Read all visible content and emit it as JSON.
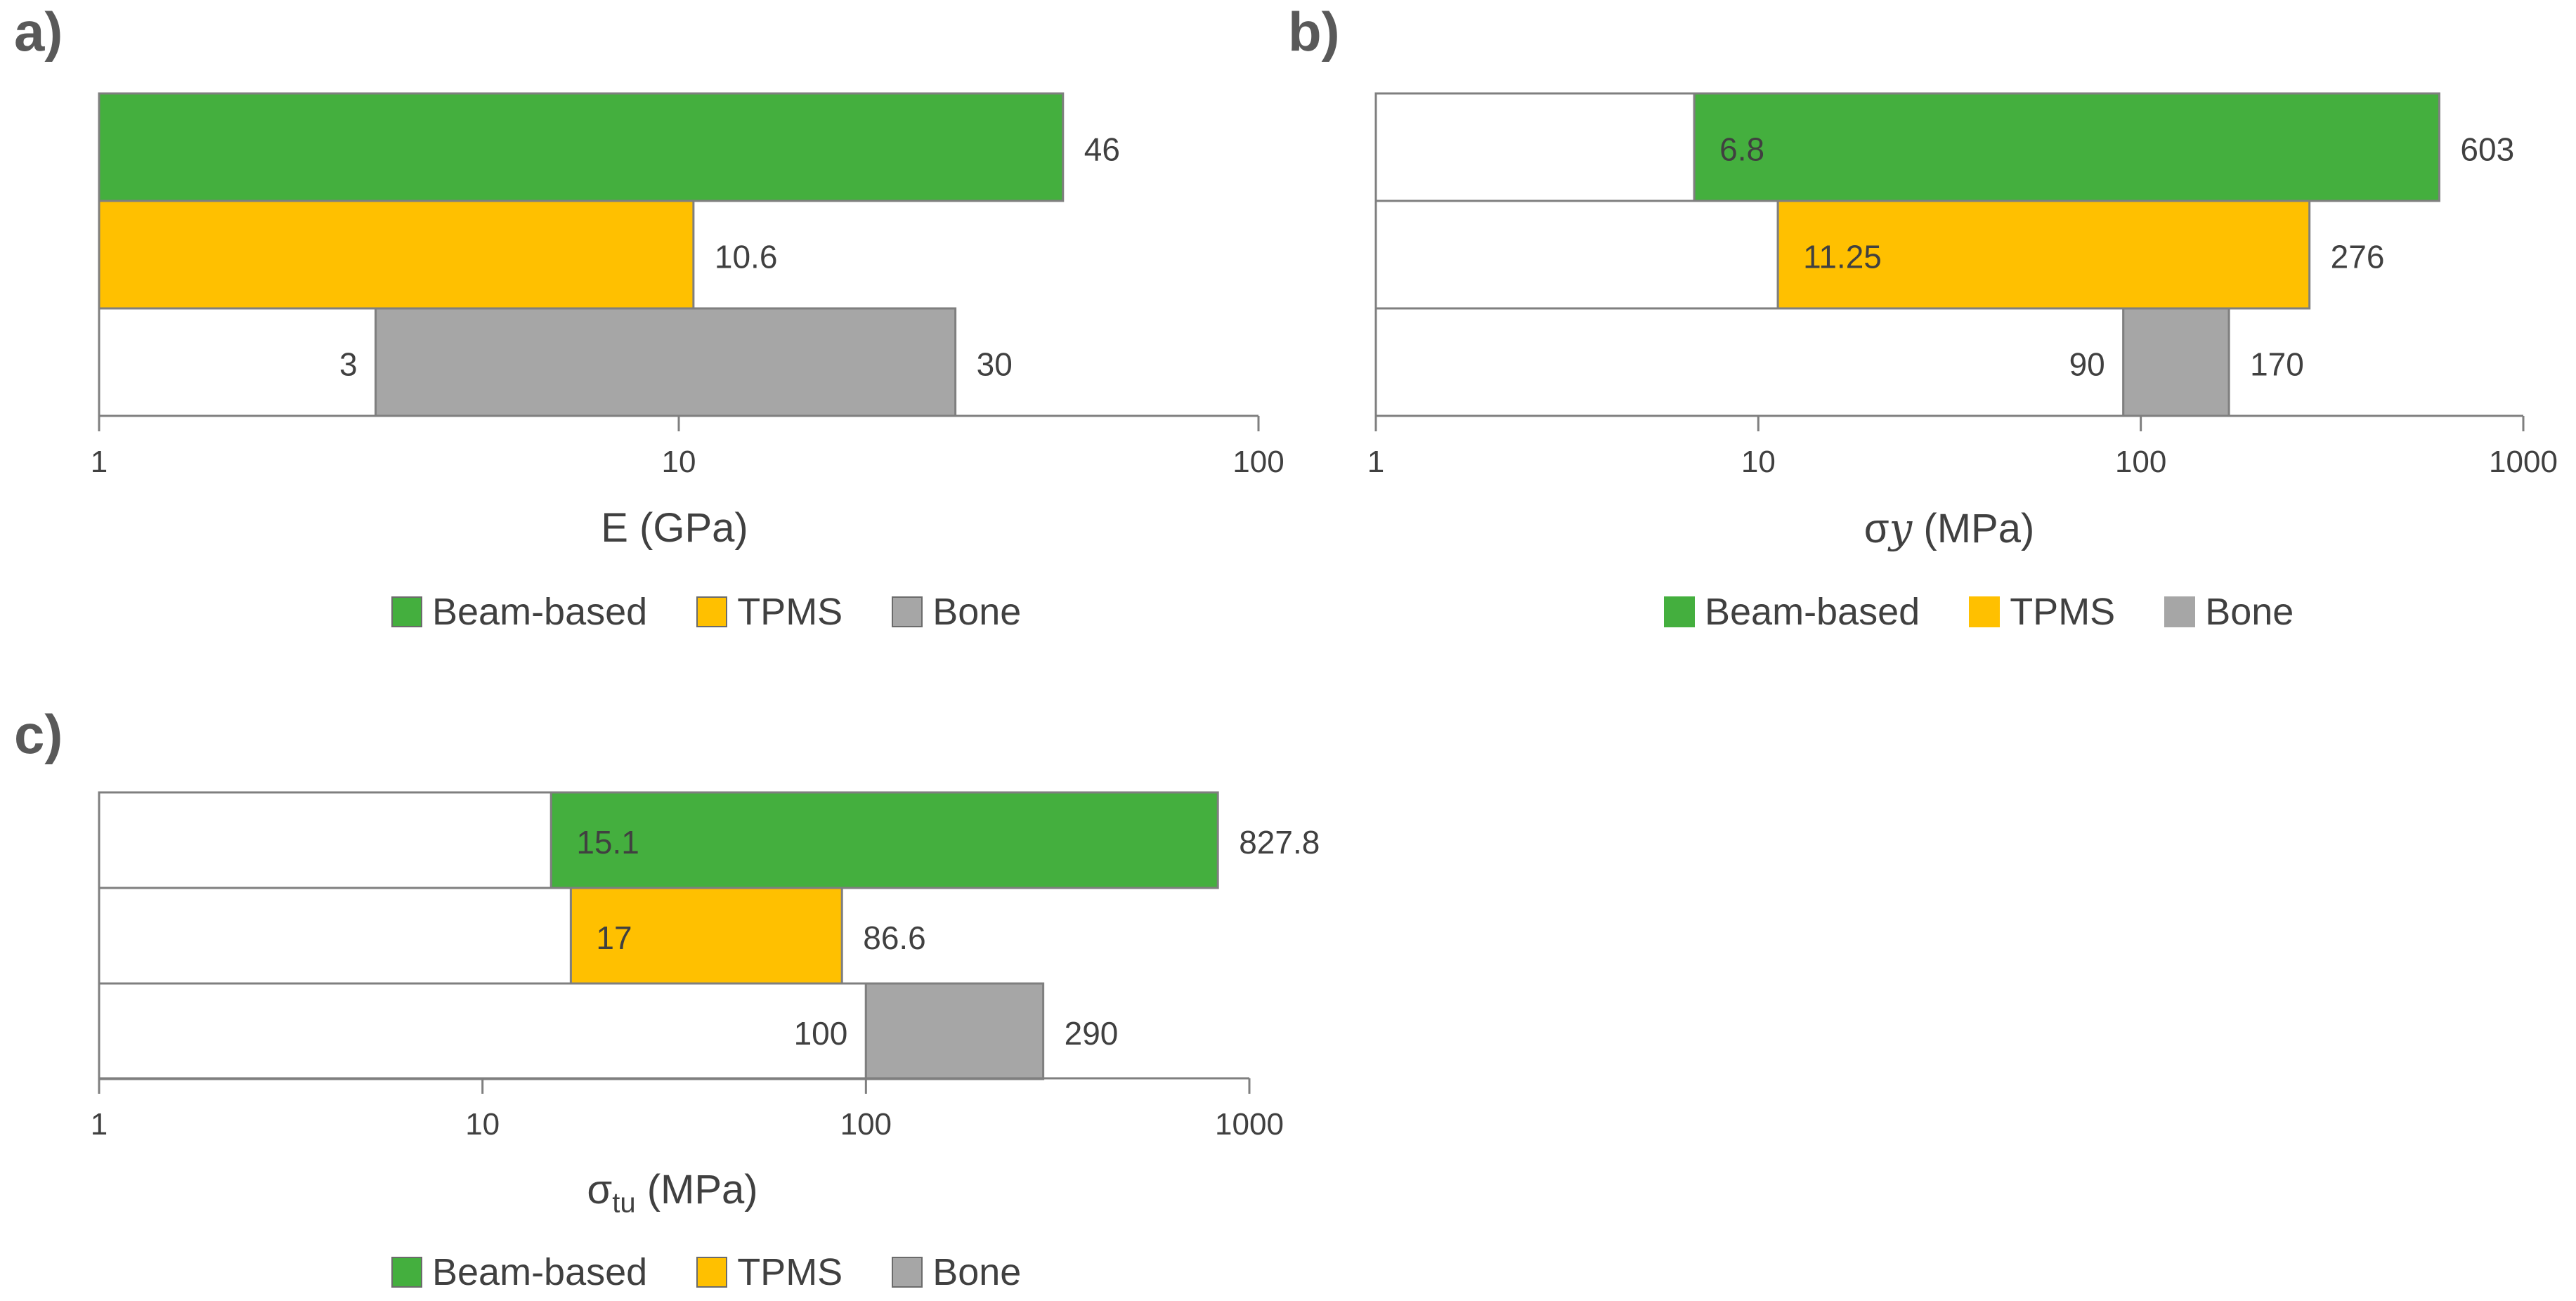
{
  "colors": {
    "beam": "#44af3e",
    "tpms": "#ffc000",
    "bone": "#a6a6a6",
    "border": "#7f7f7f",
    "axis": "#7f7f7f"
  },
  "legend": {
    "beam_label": "Beam-based",
    "tpms_label": "TPMS",
    "bone_label": "Bone"
  },
  "chart_data": [
    {
      "panel": "a)",
      "type": "bar",
      "orientation": "horizontal-floating",
      "scale": "log",
      "xlim": [
        1,
        100
      ],
      "ticks": [
        1,
        10,
        100
      ],
      "tick_labels": [
        "1",
        "10",
        "100"
      ],
      "xlabel_main": "E (GPa)",
      "xlabel_sub": "",
      "xlabel_italic": "",
      "series": [
        {
          "name": "Beam-based",
          "min": null,
          "max": 46,
          "min_label": "",
          "max_label": "46"
        },
        {
          "name": "TPMS",
          "min": null,
          "max": 10.6,
          "min_label": "",
          "max_label": "10.6"
        },
        {
          "name": "Bone",
          "min": 3,
          "max": 30,
          "min_label": "3",
          "max_label": "30"
        }
      ]
    },
    {
      "panel": "b)",
      "type": "bar",
      "orientation": "horizontal-floating",
      "scale": "log",
      "xlim": [
        1,
        1000
      ],
      "ticks": [
        1,
        10,
        100,
        1000
      ],
      "tick_labels": [
        "1",
        "10",
        "100",
        "1000"
      ],
      "xlabel_main": "σ",
      "xlabel_italic": "y",
      "xlabel_sub": "",
      "xlabel_unit": " (MPa)",
      "series": [
        {
          "name": "Beam-based",
          "min": 6.8,
          "max": 603,
          "min_label": "6.8",
          "max_label": "603"
        },
        {
          "name": "TPMS",
          "min": 11.25,
          "max": 276,
          "min_label": "11.25",
          "max_label": "276"
        },
        {
          "name": "Bone",
          "min": 90,
          "max": 170,
          "min_label": "90",
          "max_label": "170"
        }
      ]
    },
    {
      "panel": "c)",
      "type": "bar",
      "orientation": "horizontal-floating",
      "scale": "log",
      "xlim": [
        1,
        1000
      ],
      "ticks": [
        1,
        10,
        100,
        1000
      ],
      "tick_labels": [
        "1",
        "10",
        "100",
        "1000"
      ],
      "xlabel_main": "σ",
      "xlabel_italic": "",
      "xlabel_sub": "tu",
      "xlabel_unit": " (MPa)",
      "series": [
        {
          "name": "Beam-based",
          "min": 15.1,
          "max": 827.8,
          "min_label": "15.1",
          "max_label": "827.8"
        },
        {
          "name": "TPMS",
          "min": 17,
          "max": 86.6,
          "min_label": "17",
          "max_label": "86.6"
        },
        {
          "name": "Bone",
          "min": 100,
          "max": 290,
          "min_label": "100",
          "max_label": "290"
        }
      ]
    }
  ]
}
